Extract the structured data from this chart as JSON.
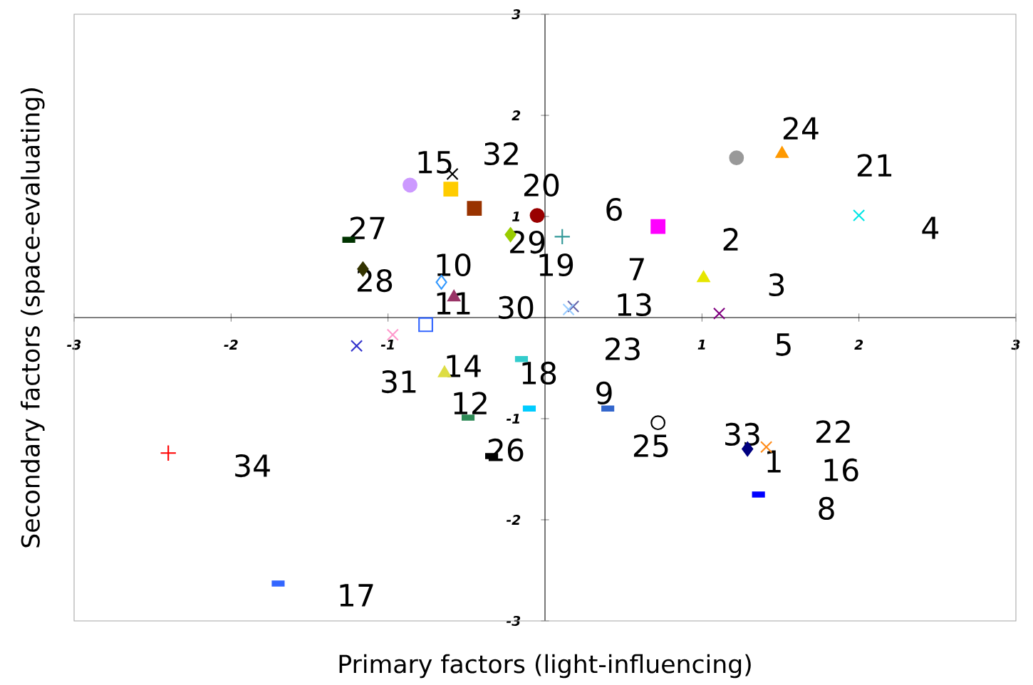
{
  "chart_data": {
    "type": "scatter",
    "xlabel": "Primary factors (light-influencing)",
    "ylabel": "Secondary factors (space-evaluating)",
    "xlim": [
      -3,
      3
    ],
    "ylim": [
      -3,
      3
    ],
    "xticks": [
      -3,
      -2,
      -1,
      1,
      2,
      3
    ],
    "yticks": [
      -3,
      -2,
      -1,
      1,
      2,
      3
    ],
    "grid": false,
    "series": [
      {
        "color": "#ff8c1a",
        "marker": "cross",
        "x": [
          1.41
        ],
        "values": [
          -1.28
        ]
      },
      {
        "color": "#e6e600",
        "marker": "triangle",
        "x": [
          1.01
        ],
        "values": [
          0.39
        ]
      },
      {
        "color": "#800080",
        "marker": "cross",
        "x": [
          1.11
        ],
        "values": [
          0.04
        ]
      },
      {
        "color": "#00e6e6",
        "marker": "cross",
        "x": [
          2.0
        ],
        "values": [
          1.01
        ]
      },
      {
        "color": "#ff99cc",
        "marker": "cross",
        "x": [
          -0.97
        ],
        "values": [
          -0.17
        ]
      },
      {
        "color": "#ff00ff",
        "marker": "square",
        "x": [
          0.72
        ],
        "values": [
          0.9
        ]
      },
      {
        "color": "#993300",
        "marker": "square",
        "x": [
          -0.45
        ],
        "values": [
          1.08
        ]
      },
      {
        "color": "#0000ff",
        "x": [
          1.36
        ],
        "values": [
          -1.75
        ]
      },
      {
        "color": "#3366cc",
        "x": [
          0.4
        ],
        "values": [
          -0.9
        ]
      },
      {
        "color": "#3399ff",
        "marker": "diamond-open",
        "x": [
          -0.66
        ],
        "values": [
          0.35
        ]
      },
      {
        "color": "#993366",
        "marker": "triangle",
        "x": [
          -0.58
        ],
        "values": [
          0.2
        ]
      },
      {
        "color": "#2e8b57",
        "x": [
          -0.49
        ],
        "values": [
          -0.99
        ]
      },
      {
        "color": "#6666aa",
        "marker": "cross",
        "x": [
          0.18
        ],
        "values": [
          0.11
        ]
      },
      {
        "color": "#dddd44",
        "marker": "triangle",
        "x": [
          -0.64
        ],
        "values": [
          -0.55
        ]
      },
      {
        "color": "#000000",
        "marker": "cross",
        "x": [
          -0.59
        ],
        "values": [
          1.42
        ]
      },
      {
        "color": "#3366ff",
        "marker": "square-open",
        "x": [
          -0.76
        ],
        "values": [
          -0.07
        ]
      },
      {
        "color": "#3366ff",
        "x": [
          -1.7
        ],
        "values": [
          -2.63
        ]
      },
      {
        "color": "#33cccc",
        "x": [
          -0.15
        ],
        "values": [
          -0.41
        ]
      },
      {
        "color": "#339999",
        "marker": "plus",
        "x": [
          0.11
        ],
        "values": [
          0.8
        ]
      },
      {
        "color": "#990000",
        "marker": "circle",
        "x": [
          -0.05
        ],
        "values": [
          1.01
        ]
      },
      {
        "color": "#999999",
        "marker": "circle",
        "x": [
          1.22
        ],
        "values": [
          1.58
        ]
      },
      {
        "color": "#cc99ff",
        "marker": "circle",
        "x": [
          -0.86
        ],
        "values": [
          1.31
        ]
      },
      {
        "color": "#00ccff",
        "x": [
          -0.1
        ],
        "values": [
          -0.9
        ]
      },
      {
        "color": "#ff9900",
        "marker": "triangle",
        "x": [
          1.51
        ],
        "values": [
          1.62
        ]
      },
      {
        "color": "#000000",
        "marker": "circle-open",
        "x": [
          0.72
        ],
        "values": [
          -1.04
        ]
      },
      {
        "color": "#000000",
        "x": [
          -0.34
        ],
        "values": [
          -1.37
        ]
      },
      {
        "color": "#003300",
        "x": [
          -1.25
        ],
        "values": [
          0.77
        ]
      },
      {
        "color": "#333300",
        "marker": "diamond",
        "x": [
          -1.16
        ],
        "values": [
          0.48
        ]
      },
      {
        "color": "#99cc00",
        "marker": "diamond",
        "x": [
          -0.22
        ],
        "values": [
          0.82
        ]
      },
      {
        "color": "#99ccff",
        "marker": "cross",
        "x": [
          0.15
        ],
        "values": [
          0.08
        ]
      },
      {
        "color": "#3333cc",
        "marker": "cross",
        "x": [
          -1.2
        ],
        "values": [
          -0.28
        ]
      },
      {
        "color": "#ffcc00",
        "marker": "square",
        "x": [
          -0.6
        ],
        "values": [
          1.27
        ]
      },
      {
        "color": "#000080",
        "marker": "diamond",
        "x": [
          1.29
        ],
        "values": [
          -1.3
        ]
      },
      {
        "color": "#ff0000",
        "marker": "plus",
        "x": [
          -2.4
        ],
        "values": [
          -1.34
        ]
      }
    ],
    "annotations": [
      "1",
      "2",
      "3",
      "4",
      "5",
      "6",
      "7",
      "8",
      "9",
      "10",
      "11",
      "12",
      "13",
      "14",
      "15",
      "16",
      "17",
      "18",
      "19",
      "20",
      "21",
      "22",
      "23",
      "24",
      "25",
      "26",
      "27",
      "28",
      "29",
      "30",
      "31",
      "32",
      "33",
      "34"
    ]
  }
}
